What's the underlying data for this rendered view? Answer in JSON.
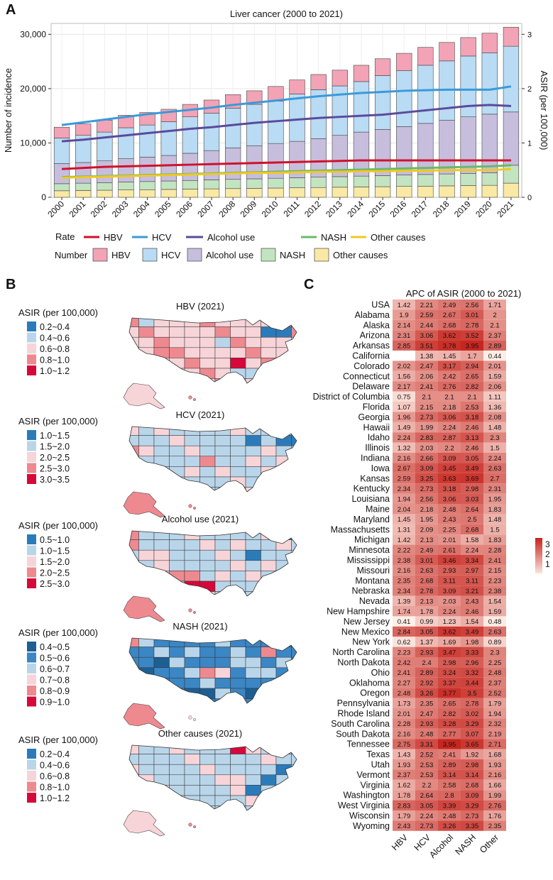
{
  "panels": {
    "a": "A",
    "b": "B",
    "c": "C"
  },
  "colors": {
    "hbv_fill": "#f2a3b6",
    "hcv_fill": "#b9dbf3",
    "alcohol_fill": "#c7bedd",
    "nash_fill": "#c3e4c0",
    "other_fill": "#fae9a5",
    "hbv_line": "#d0112b",
    "hcv_line": "#3a9ad9",
    "alcohol_line": "#5a4a9c",
    "nash_line": "#6ab86a",
    "other_line": "#f0c820",
    "map_land": "#f7cfd3",
    "map_water": "#ffffff"
  },
  "chart_data": [
    {
      "type": "bar",
      "title": "Liver cancer (2000 to 2021)",
      "ylabel": "Number of incidence",
      "y2label": "ASIR (per 100,000)",
      "ylim": [
        0,
        32000
      ],
      "y2lim": [
        0,
        3.2
      ],
      "yticks": [
        "0",
        "10,000",
        "20,000",
        "30,000"
      ],
      "y2ticks": [
        "0",
        "1",
        "2",
        "3"
      ],
      "categories": [
        "2000",
        "2001",
        "2002",
        "2003",
        "2004",
        "2005",
        "2006",
        "2007",
        "2008",
        "2009",
        "2010",
        "2011",
        "2012",
        "2013",
        "2014",
        "2015",
        "2016",
        "2017",
        "2018",
        "2019",
        "2020",
        "2021"
      ],
      "stacked_series": [
        {
          "name": "Other causes",
          "values": [
            1200,
            1250,
            1300,
            1350,
            1400,
            1450,
            1500,
            1550,
            1600,
            1650,
            1700,
            1750,
            1800,
            1850,
            1900,
            1950,
            2000,
            2050,
            2100,
            2150,
            2200,
            2600
          ]
        },
        {
          "name": "NASH",
          "values": [
            1300,
            1350,
            1400,
            1450,
            1500,
            1550,
            1600,
            1650,
            1700,
            1750,
            1800,
            1850,
            1900,
            1950,
            2000,
            2050,
            2100,
            2150,
            2200,
            2250,
            2300,
            3300
          ]
        },
        {
          "name": "Alcohol use",
          "values": [
            3700,
            3800,
            4000,
            4300,
            4500,
            4700,
            5000,
            5400,
            5800,
            6100,
            6400,
            6700,
            7100,
            7600,
            8100,
            8500,
            8900,
            9400,
            9900,
            10400,
            10800,
            9800
          ]
        },
        {
          "name": "HCV",
          "values": [
            4700,
            5000,
            5300,
            5700,
            5900,
            6200,
            6700,
            6900,
            7300,
            7600,
            7800,
            8700,
            9000,
            9100,
            9300,
            9900,
            10300,
            10700,
            10900,
            11200,
            11300,
            12100
          ]
        },
        {
          "name": "HBV",
          "values": [
            2000,
            2100,
            2200,
            2300,
            2300,
            2300,
            2300,
            2400,
            2500,
            2500,
            2700,
            2600,
            2800,
            2900,
            3000,
            3100,
            3200,
            3300,
            3400,
            3400,
            3600,
            3500
          ]
        }
      ],
      "rate_series": [
        {
          "name": "HBV",
          "values": [
            0.52,
            0.54,
            0.56,
            0.57,
            0.58,
            0.59,
            0.6,
            0.61,
            0.62,
            0.63,
            0.64,
            0.65,
            0.66,
            0.67,
            0.68,
            0.68,
            0.68,
            0.68,
            0.68,
            0.68,
            0.68,
            0.68
          ]
        },
        {
          "name": "HCV",
          "values": [
            1.33,
            1.38,
            1.43,
            1.48,
            1.53,
            1.57,
            1.61,
            1.65,
            1.7,
            1.74,
            1.78,
            1.82,
            1.86,
            1.89,
            1.92,
            1.94,
            1.96,
            1.97,
            1.98,
            1.98,
            1.98,
            2.04
          ]
        },
        {
          "name": "Alcohol use",
          "values": [
            1.03,
            1.06,
            1.1,
            1.14,
            1.18,
            1.22,
            1.26,
            1.29,
            1.33,
            1.37,
            1.4,
            1.43,
            1.46,
            1.48,
            1.5,
            1.52,
            1.56,
            1.6,
            1.64,
            1.68,
            1.7,
            1.68
          ]
        },
        {
          "name": "NASH",
          "values": [
            0.37,
            0.38,
            0.39,
            0.4,
            0.41,
            0.42,
            0.43,
            0.44,
            0.45,
            0.46,
            0.47,
            0.48,
            0.49,
            0.5,
            0.51,
            0.52,
            0.53,
            0.54,
            0.55,
            0.56,
            0.57,
            0.59
          ]
        },
        {
          "name": "Other causes",
          "values": [
            0.36,
            0.37,
            0.38,
            0.39,
            0.4,
            0.41,
            0.42,
            0.43,
            0.44,
            0.45,
            0.45,
            0.46,
            0.47,
            0.47,
            0.48,
            0.48,
            0.49,
            0.49,
            0.5,
            0.5,
            0.5,
            0.52
          ]
        }
      ],
      "legend_rate_label": "Rate",
      "legend_number_label": "Number",
      "legend_items": [
        "HBV",
        "HCV",
        "Alcohol use",
        "NASH",
        "Other causes"
      ]
    },
    {
      "type": "heatmap",
      "title": "APC of ASIR (2000 to 2021)",
      "columns": [
        "HBV",
        "HCV",
        "Alcohol",
        "NASH",
        "Other"
      ],
      "colorbar_ticks": [
        "3",
        "2",
        "1"
      ],
      "rows": [
        {
          "state": "USA",
          "values": [
            1.42,
            2.21,
            2.49,
            2.56,
            1.71
          ]
        },
        {
          "state": "Alabama",
          "values": [
            1.9,
            2.59,
            2.67,
            3.01,
            2
          ]
        },
        {
          "state": "Alaska",
          "values": [
            2.14,
            2.44,
            2.68,
            2.78,
            2.1
          ]
        },
        {
          "state": "Arizona",
          "values": [
            2.31,
            3.06,
            3.62,
            3.52,
            2.37
          ]
        },
        {
          "state": "Arkansas",
          "values": [
            2.85,
            3.51,
            3.78,
            3.95,
            2.89
          ]
        },
        {
          "state": "California",
          "values": [
            null,
            1.38,
            1.45,
            1.7,
            0.44
          ]
        },
        {
          "state": "Colorado",
          "values": [
            2.02,
            2.47,
            3.17,
            2.94,
            2.01
          ]
        },
        {
          "state": "Connecticut",
          "values": [
            1.56,
            2.06,
            2.42,
            2.65,
            1.59
          ]
        },
        {
          "state": "Delaware",
          "values": [
            2.17,
            2.41,
            2.76,
            2.82,
            2.06
          ]
        },
        {
          "state": "District of Columbia",
          "values": [
            0.75,
            2.1,
            2.1,
            2.1,
            1.11
          ]
        },
        {
          "state": "Florida",
          "values": [
            1.07,
            2.15,
            2.18,
            2.53,
            1.36
          ]
        },
        {
          "state": "Georgia",
          "values": [
            1.96,
            2.73,
            3.06,
            3.18,
            2.08
          ]
        },
        {
          "state": "Hawaii",
          "values": [
            1.49,
            1.99,
            2.24,
            2.46,
            1.48
          ]
        },
        {
          "state": "Idaho",
          "values": [
            2.24,
            2.83,
            2.87,
            3.13,
            2.3
          ]
        },
        {
          "state": "Illinois",
          "values": [
            1.32,
            2.03,
            2.2,
            2.46,
            1.5
          ]
        },
        {
          "state": "Indiana",
          "values": [
            2.16,
            2.66,
            3.09,
            3.05,
            2.24
          ]
        },
        {
          "state": "Iowa",
          "values": [
            2.67,
            3.09,
            3.45,
            3.49,
            2.63
          ]
        },
        {
          "state": "Kansas",
          "values": [
            2.59,
            3.25,
            3.63,
            3.69,
            2.7
          ]
        },
        {
          "state": "Kentucky",
          "values": [
            2.34,
            2.73,
            3.18,
            2.98,
            2.31
          ]
        },
        {
          "state": "Louisiana",
          "values": [
            1.94,
            2.56,
            3.06,
            3.03,
            1.95
          ]
        },
        {
          "state": "Maine",
          "values": [
            2.04,
            2.18,
            2.48,
            2.64,
            1.83
          ]
        },
        {
          "state": "Maryland",
          "values": [
            1.45,
            1.95,
            2.43,
            2.5,
            1.48
          ]
        },
        {
          "state": "Massachusetts",
          "values": [
            1.31,
            2.09,
            2.25,
            2.68,
            1.5
          ]
        },
        {
          "state": "Michigan",
          "values": [
            1.42,
            2.13,
            2.01,
            1.58,
            1.83
          ]
        },
        {
          "state": "Minnesota",
          "values": [
            2.22,
            2.49,
            2.61,
            2.24,
            2.28
          ]
        },
        {
          "state": "Mississippi",
          "values": [
            2.38,
            3.01,
            3.46,
            3.34,
            2.41
          ]
        },
        {
          "state": "Missouri",
          "values": [
            2.16,
            2.63,
            2.93,
            2.97,
            2.15
          ]
        },
        {
          "state": "Montana",
          "values": [
            2.35,
            2.68,
            3.11,
            3.11,
            2.23
          ]
        },
        {
          "state": "Nebraska",
          "values": [
            2.34,
            2.78,
            3.09,
            3.21,
            2.38
          ]
        },
        {
          "state": "Nevada",
          "values": [
            1.39,
            2.13,
            2.03,
            2.43,
            1.54
          ]
        },
        {
          "state": "New Hampshire",
          "values": [
            1.74,
            1.78,
            2.24,
            2.46,
            1.59
          ]
        },
        {
          "state": "New Jersey",
          "values": [
            0.41,
            0.99,
            1.23,
            1.54,
            0.48
          ]
        },
        {
          "state": "New Mexico",
          "values": [
            2.84,
            3.05,
            3.62,
            3.49,
            2.63
          ]
        },
        {
          "state": "New York",
          "values": [
            0.62,
            1.37,
            1.69,
            1.98,
            0.89
          ]
        },
        {
          "state": "North Carolina",
          "values": [
            2.23,
            2.93,
            3.47,
            3.33,
            2.3
          ]
        },
        {
          "state": "North Dakota",
          "values": [
            2.42,
            2.4,
            2.98,
            2.96,
            2.25
          ]
        },
        {
          "state": "Ohio",
          "values": [
            2.41,
            2.89,
            3.24,
            3.32,
            2.48
          ]
        },
        {
          "state": "Oklahoma",
          "values": [
            2.27,
            2.92,
            3.37,
            3.44,
            2.37
          ]
        },
        {
          "state": "Oregon",
          "values": [
            2.48,
            3.26,
            3.77,
            3.5,
            2.52
          ]
        },
        {
          "state": "Pennsylvania",
          "values": [
            1.73,
            2.35,
            2.65,
            2.78,
            1.79
          ]
        },
        {
          "state": "Rhode Island",
          "values": [
            2.01,
            2.47,
            2.82,
            3.02,
            1.94
          ]
        },
        {
          "state": "South Carolina",
          "values": [
            2.28,
            2.93,
            3.28,
            3.29,
            2.32
          ]
        },
        {
          "state": "South Dakota",
          "values": [
            2.16,
            2.48,
            2.77,
            3.07,
            2.19
          ]
        },
        {
          "state": "Tennessee",
          "values": [
            2.75,
            3.31,
            3.95,
            3.65,
            2.71
          ]
        },
        {
          "state": "Texas",
          "values": [
            1.43,
            2.52,
            2.41,
            1.92,
            1.68
          ]
        },
        {
          "state": "Utah",
          "values": [
            1.93,
            2.53,
            2.89,
            2.98,
            1.93
          ]
        },
        {
          "state": "Vermont",
          "values": [
            2.37,
            2.53,
            3.14,
            3.14,
            2.16
          ]
        },
        {
          "state": "Virginia",
          "values": [
            1.62,
            2.2,
            2.58,
            2.68,
            1.66
          ]
        },
        {
          "state": "Washington",
          "values": [
            1.78,
            2.64,
            2.8,
            3.09,
            1.99
          ]
        },
        {
          "state": "West Virginia",
          "values": [
            2.83,
            3.05,
            3.39,
            3.29,
            2.76
          ]
        },
        {
          "state": "Wisconsin",
          "values": [
            1.79,
            2.24,
            2.48,
            2.73,
            1.76
          ]
        },
        {
          "state": "Wyoming",
          "values": [
            2.43,
            2.73,
            3.26,
            3.35,
            2.35
          ]
        }
      ]
    }
  ],
  "maps": [
    {
      "title": "HBV (2021)",
      "legend_title": "ASIR (per 100,000)",
      "legend": [
        {
          "label": "0.2~0.4",
          "color": "#2b7bba"
        },
        {
          "label": "0.4~0.6",
          "color": "#b9d5ea"
        },
        {
          "label": "0.6~0.8",
          "color": "#f7d4d8"
        },
        {
          "label": "0.8~1.0",
          "color": "#ee8990"
        },
        {
          "label": "1.0~1.2",
          "color": "#d6083a"
        }
      ]
    },
    {
      "title": "HCV (2021)",
      "legend_title": "ASIR (per 100,000)",
      "legend": [
        {
          "label": "1.0~1.5",
          "color": "#2b7bba"
        },
        {
          "label": "1.5~2.0",
          "color": "#b9d5ea"
        },
        {
          "label": "2.0~2.5",
          "color": "#f7d4d8"
        },
        {
          "label": "2.5~3.0",
          "color": "#ee8990"
        },
        {
          "label": "3.0~3.5",
          "color": "#d6083a"
        }
      ]
    },
    {
      "title": "Alcohol use (2021)",
      "legend_title": "ASIR (per 100,000)",
      "legend": [
        {
          "label": "0.5~1.0",
          "color": "#2b7bba"
        },
        {
          "label": "1.0~1.5",
          "color": "#b9d5ea"
        },
        {
          "label": "1.5~2.0",
          "color": "#f7d4d8"
        },
        {
          "label": "2.0~2.5",
          "color": "#ee8990"
        },
        {
          "label": "2.5~3.0",
          "color": "#d6083a"
        }
      ]
    },
    {
      "title": "NASH (2021)",
      "legend_title": "ASIR (per 100,000)",
      "legend": [
        {
          "label": "0.4~0.5",
          "color": "#1d5f93"
        },
        {
          "label": "0.5~0.6",
          "color": "#3b86c4"
        },
        {
          "label": "0.6~0.7",
          "color": "#b9d5ea"
        },
        {
          "label": "0.7~0.8",
          "color": "#f7d4d8"
        },
        {
          "label": "0.8~0.9",
          "color": "#ee8990"
        },
        {
          "label": "0.9~1.0",
          "color": "#d6083a"
        }
      ]
    },
    {
      "title": "Other causes (2021)",
      "legend_title": "ASIR (per 100,000)",
      "legend": [
        {
          "label": "0.2~0.4",
          "color": "#2b7bba"
        },
        {
          "label": "0.4~0.6",
          "color": "#b9d5ea"
        },
        {
          "label": "0.6~0.8",
          "color": "#f7d4d8"
        },
        {
          "label": "0.8~1.0",
          "color": "#ee8990"
        },
        {
          "label": "1.0~1.2",
          "color": "#d6083a"
        }
      ]
    }
  ]
}
